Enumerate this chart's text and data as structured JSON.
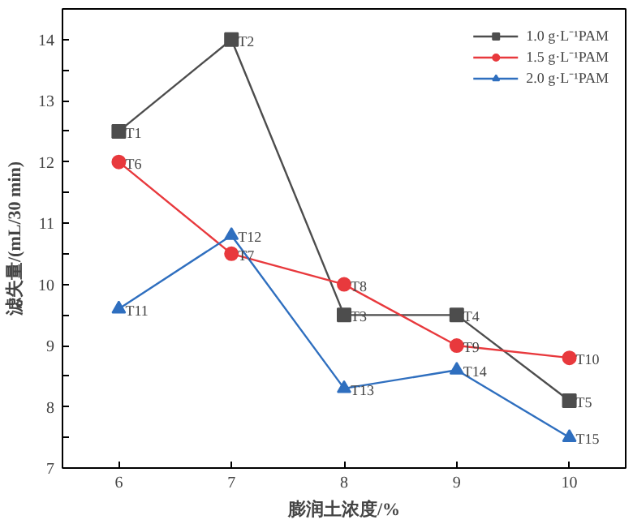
{
  "chart_data": {
    "type": "line",
    "xlabel": "膨润土浓度/%",
    "ylabel": "滤失量/(mL/30 min)",
    "x": [
      6,
      7,
      8,
      9,
      10
    ],
    "series": [
      {
        "name": "1.0 g·L⁻¹PAM",
        "color": "#4d4d4d",
        "marker": "square",
        "values": [
          12.5,
          14,
          9.5,
          9.5,
          8.1
        ]
      },
      {
        "name": "1.5 g·L⁻¹PAM",
        "color": "#e8393d",
        "marker": "circle",
        "values": [
          12,
          10.5,
          10,
          9,
          8.8
        ]
      },
      {
        "name": "2.0 g·L⁻¹PAM",
        "color": "#2f6fbf",
        "marker": "triangle",
        "values": [
          9.6,
          10.8,
          8.3,
          8.6,
          7.5
        ]
      }
    ],
    "annotations": [
      {
        "text": "T1",
        "x": 6,
        "y": 12.5
      },
      {
        "text": "T2",
        "x": 7,
        "y": 14
      },
      {
        "text": "T3",
        "x": 8,
        "y": 9.5
      },
      {
        "text": "T4",
        "x": 9,
        "y": 9.5
      },
      {
        "text": "T5",
        "x": 10,
        "y": 8.1
      },
      {
        "text": "T6",
        "x": 6,
        "y": 12
      },
      {
        "text": "T7",
        "x": 7,
        "y": 10.5
      },
      {
        "text": "T8",
        "x": 8,
        "y": 10
      },
      {
        "text": "T9",
        "x": 9,
        "y": 9
      },
      {
        "text": "T10",
        "x": 10,
        "y": 8.8
      },
      {
        "text": "T11",
        "x": 6,
        "y": 9.6
      },
      {
        "text": "T12",
        "x": 7,
        "y": 10.8
      },
      {
        "text": "T13",
        "x": 8,
        "y": 8.3
      },
      {
        "text": "T14",
        "x": 9,
        "y": 8.6
      },
      {
        "text": "T15",
        "x": 10,
        "y": 7.5
      }
    ],
    "xlim": [
      5.5,
      10.5
    ],
    "ylim": [
      7,
      14.5
    ],
    "xticks": [
      6,
      7,
      8,
      9,
      10
    ],
    "yticks": [
      7,
      {
        "value": 7.5,
        "label": null
      },
      8,
      {
        "value": 8.5,
        "label": null
      },
      9,
      {
        "value": 9.5,
        "label": null
      },
      10,
      {
        "value": 10.5,
        "label": null
      },
      11,
      {
        "value": 11.5,
        "label": null
      },
      12,
      {
        "value": 12.5,
        "label": null
      },
      13,
      {
        "value": 13.5,
        "label": null
      },
      14
    ],
    "grid": false,
    "legend": "top right",
    "line_style": "solid"
  }
}
